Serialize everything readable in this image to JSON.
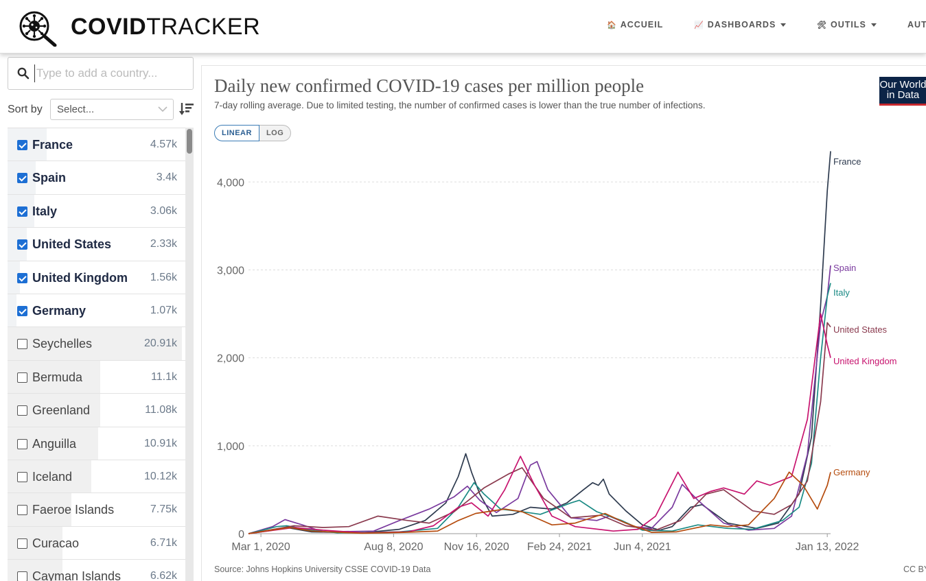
{
  "header": {
    "brand_bold": "COVID",
    "brand_light": "TRACKER",
    "nav": [
      {
        "emoji": "🏠",
        "label": "ACCUEIL",
        "dropdown": false
      },
      {
        "emoji": "📈",
        "label": "DASHBOARDS",
        "dropdown": true
      },
      {
        "emoji": "🛠",
        "label": "OUTILS",
        "dropdown": true
      },
      {
        "emoji": "",
        "label": "AUT",
        "dropdown": false
      }
    ]
  },
  "sidebar": {
    "search_placeholder": "Type to add a country...",
    "sort_label": "Sort by",
    "sort_placeholder": "Select...",
    "countries": [
      {
        "name": "France",
        "value": "4.57k",
        "checked": true,
        "bar": 0.22
      },
      {
        "name": "Spain",
        "value": "3.4k",
        "checked": true,
        "bar": 0.16
      },
      {
        "name": "Italy",
        "value": "3.06k",
        "checked": true,
        "bar": 0.15
      },
      {
        "name": "United States",
        "value": "2.33k",
        "checked": true,
        "bar": 0.11
      },
      {
        "name": "United Kingdom",
        "value": "1.56k",
        "checked": true,
        "bar": 0.07
      },
      {
        "name": "Germany",
        "value": "1.07k",
        "checked": true,
        "bar": 0.05
      },
      {
        "name": "Seychelles",
        "value": "20.91k",
        "checked": false,
        "bar": 0.98
      },
      {
        "name": "Bermuda",
        "value": "11.1k",
        "checked": false,
        "bar": 0.52
      },
      {
        "name": "Greenland",
        "value": "11.08k",
        "checked": false,
        "bar": 0.52
      },
      {
        "name": "Anguilla",
        "value": "10.91k",
        "checked": false,
        "bar": 0.51
      },
      {
        "name": "Iceland",
        "value": "10.12k",
        "checked": false,
        "bar": 0.47
      },
      {
        "name": "Faeroe Islands",
        "value": "7.75k",
        "checked": false,
        "bar": 0.36
      },
      {
        "name": "Curacao",
        "value": "6.71k",
        "checked": false,
        "bar": 0.31
      },
      {
        "name": "Cayman Islands",
        "value": "6.62k",
        "checked": false,
        "bar": 0.31
      }
    ]
  },
  "chart": {
    "title": "Daily new confirmed COVID-19 cases per million people",
    "subtitle": "7-day rolling average. Due to limited testing, the number of confirmed cases is lower than the true number of infections.",
    "logo_line1": "Our World",
    "logo_line2": "in Data",
    "scale_linear": "LINEAR",
    "scale_log": "LOG",
    "source": "Source: Johns Hopkins University CSSE COVID-19 Data",
    "license": "CC BY"
  },
  "chart_data": {
    "type": "line",
    "x_tick_labels": [
      "Mar 1, 2020",
      "Aug 8, 2020",
      "Nov 16, 2020",
      "Feb 24, 2021",
      "Jun 4, 2021",
      "Jan 13, 2022"
    ],
    "x_tick_dates": [
      "2020-03-01",
      "2020-08-08",
      "2020-11-16",
      "2021-02-24",
      "2021-06-04",
      "2022-01-13"
    ],
    "x_range": [
      "2020-02-15",
      "2022-01-17"
    ],
    "y_ticks": [
      0,
      1000,
      2000,
      3000,
      4000
    ],
    "ylim": [
      0,
      4400
    ],
    "grid": "horizontal",
    "series": [
      {
        "name": "France",
        "color": "#2d3a4e",
        "points": [
          [
            "2020-02-15",
            0
          ],
          [
            "2020-03-15",
            40
          ],
          [
            "2020-04-01",
            70
          ],
          [
            "2020-05-01",
            20
          ],
          [
            "2020-07-01",
            10
          ],
          [
            "2020-08-15",
            50
          ],
          [
            "2020-09-15",
            150
          ],
          [
            "2020-10-10",
            350
          ],
          [
            "2020-10-25",
            650
          ],
          [
            "2020-11-03",
            910
          ],
          [
            "2020-11-10",
            700
          ],
          [
            "2020-11-20",
            450
          ],
          [
            "2020-12-05",
            200
          ],
          [
            "2020-12-30",
            220
          ],
          [
            "2021-01-20",
            300
          ],
          [
            "2021-02-15",
            280
          ],
          [
            "2021-03-05",
            350
          ],
          [
            "2021-03-25",
            500
          ],
          [
            "2021-04-05",
            580
          ],
          [
            "2021-04-12",
            550
          ],
          [
            "2021-04-18",
            620
          ],
          [
            "2021-04-25",
            450
          ],
          [
            "2021-05-15",
            260
          ],
          [
            "2021-06-04",
            100
          ],
          [
            "2021-06-25",
            40
          ],
          [
            "2021-07-10",
            80
          ],
          [
            "2021-08-01",
            300
          ],
          [
            "2021-08-15",
            330
          ],
          [
            "2021-09-15",
            120
          ],
          [
            "2021-10-20",
            60
          ],
          [
            "2021-11-15",
            120
          ],
          [
            "2021-12-10",
            450
          ],
          [
            "2021-12-25",
            1100
          ],
          [
            "2022-01-05",
            2600
          ],
          [
            "2022-01-13",
            3900
          ],
          [
            "2022-01-17",
            4350
          ]
        ]
      },
      {
        "name": "Spain",
        "color": "#7a3a9e",
        "points": [
          [
            "2020-02-15",
            0
          ],
          [
            "2020-03-15",
            80
          ],
          [
            "2020-03-30",
            160
          ],
          [
            "2020-04-20",
            100
          ],
          [
            "2020-05-15",
            20
          ],
          [
            "2020-07-15",
            30
          ],
          [
            "2020-08-15",
            150
          ],
          [
            "2020-09-20",
            280
          ],
          [
            "2020-10-20",
            420
          ],
          [
            "2020-11-05",
            540
          ],
          [
            "2020-11-20",
            380
          ],
          [
            "2020-12-10",
            240
          ],
          [
            "2021-01-05",
            400
          ],
          [
            "2021-01-20",
            780
          ],
          [
            "2021-01-28",
            820
          ],
          [
            "2021-02-10",
            500
          ],
          [
            "2021-03-10",
            180
          ],
          [
            "2021-04-10",
            150
          ],
          [
            "2021-04-25",
            200
          ],
          [
            "2021-05-25",
            80
          ],
          [
            "2021-06-15",
            60
          ],
          [
            "2021-07-10",
            300
          ],
          [
            "2021-07-22",
            560
          ],
          [
            "2021-08-10",
            380
          ],
          [
            "2021-09-10",
            120
          ],
          [
            "2021-10-10",
            40
          ],
          [
            "2021-11-10",
            60
          ],
          [
            "2021-12-01",
            200
          ],
          [
            "2021-12-20",
            900
          ],
          [
            "2022-01-05",
            2400
          ],
          [
            "2022-01-13",
            2700
          ],
          [
            "2022-01-17",
            3050
          ]
        ]
      },
      {
        "name": "Italy",
        "color": "#1a8a84",
        "points": [
          [
            "2020-02-15",
            0
          ],
          [
            "2020-03-20",
            80
          ],
          [
            "2020-04-01",
            90
          ],
          [
            "2020-04-30",
            40
          ],
          [
            "2020-06-01",
            10
          ],
          [
            "2020-08-15",
            20
          ],
          [
            "2020-09-30",
            60
          ],
          [
            "2020-10-25",
            300
          ],
          [
            "2020-11-13",
            580
          ],
          [
            "2020-11-25",
            450
          ],
          [
            "2020-12-15",
            280
          ],
          [
            "2021-01-10",
            250
          ],
          [
            "2021-02-01",
            220
          ],
          [
            "2021-03-10",
            350
          ],
          [
            "2021-03-20",
            380
          ],
          [
            "2021-04-10",
            250
          ],
          [
            "2021-05-10",
            150
          ],
          [
            "2021-06-04",
            40
          ],
          [
            "2021-07-10",
            30
          ],
          [
            "2021-08-10",
            100
          ],
          [
            "2021-09-15",
            60
          ],
          [
            "2021-10-15",
            50
          ],
          [
            "2021-11-20",
            150
          ],
          [
            "2021-12-10",
            300
          ],
          [
            "2021-12-25",
            800
          ],
          [
            "2022-01-05",
            2000
          ],
          [
            "2022-01-13",
            2700
          ],
          [
            "2022-01-17",
            2850
          ]
        ]
      },
      {
        "name": "United States",
        "color": "#8a3a4e",
        "points": [
          [
            "2020-02-15",
            0
          ],
          [
            "2020-04-10",
            90
          ],
          [
            "2020-05-15",
            70
          ],
          [
            "2020-06-15",
            80
          ],
          [
            "2020-07-20",
            200
          ],
          [
            "2020-08-25",
            150
          ],
          [
            "2020-09-20",
            120
          ],
          [
            "2020-10-20",
            250
          ],
          [
            "2020-11-25",
            520
          ],
          [
            "2020-12-25",
            680
          ],
          [
            "2021-01-10",
            750
          ],
          [
            "2021-02-05",
            400
          ],
          [
            "2021-03-10",
            180
          ],
          [
            "2021-04-15",
            210
          ],
          [
            "2021-05-15",
            90
          ],
          [
            "2021-06-20",
            40
          ],
          [
            "2021-07-20",
            150
          ],
          [
            "2021-08-20",
            450
          ],
          [
            "2021-09-10",
            500
          ],
          [
            "2021-10-15",
            260
          ],
          [
            "2021-11-10",
            220
          ],
          [
            "2021-12-01",
            330
          ],
          [
            "2021-12-20",
            600
          ],
          [
            "2022-01-05",
            1500
          ],
          [
            "2022-01-13",
            2400
          ],
          [
            "2022-01-17",
            2350
          ]
        ]
      },
      {
        "name": "United Kingdom",
        "color": "#c7136e",
        "points": [
          [
            "2020-02-15",
            0
          ],
          [
            "2020-04-10",
            70
          ],
          [
            "2020-05-15",
            40
          ],
          [
            "2020-07-01",
            10
          ],
          [
            "2020-08-25",
            20
          ],
          [
            "2020-09-25",
            90
          ],
          [
            "2020-10-25",
            300
          ],
          [
            "2020-11-10",
            350
          ],
          [
            "2020-11-30",
            200
          ],
          [
            "2020-12-20",
            500
          ],
          [
            "2021-01-08",
            880
          ],
          [
            "2021-01-25",
            550
          ],
          [
            "2021-02-15",
            200
          ],
          [
            "2021-03-15",
            80
          ],
          [
            "2021-04-30",
            30
          ],
          [
            "2021-05-30",
            50
          ],
          [
            "2021-06-20",
            200
          ],
          [
            "2021-07-17",
            700
          ],
          [
            "2021-08-05",
            400
          ],
          [
            "2021-08-25",
            480
          ],
          [
            "2021-09-10",
            520
          ],
          [
            "2021-10-05",
            450
          ],
          [
            "2021-10-20",
            600
          ],
          [
            "2021-11-05",
            550
          ],
          [
            "2021-12-01",
            650
          ],
          [
            "2021-12-20",
            1300
          ],
          [
            "2022-01-05",
            2500
          ],
          [
            "2022-01-13",
            2150
          ],
          [
            "2022-01-17",
            2000
          ]
        ]
      },
      {
        "name": "Germany",
        "color": "#b54c0e",
        "points": [
          [
            "2020-02-15",
            0
          ],
          [
            "2020-03-20",
            50
          ],
          [
            "2020-04-05",
            70
          ],
          [
            "2020-05-01",
            30
          ],
          [
            "2020-07-01",
            5
          ],
          [
            "2020-08-20",
            15
          ],
          [
            "2020-09-30",
            30
          ],
          [
            "2020-10-25",
            150
          ],
          [
            "2020-11-15",
            230
          ],
          [
            "2020-12-20",
            280
          ],
          [
            "2021-01-10",
            250
          ],
          [
            "2021-02-15",
            100
          ],
          [
            "2021-03-15",
            120
          ],
          [
            "2021-04-20",
            230
          ],
          [
            "2021-05-15",
            120
          ],
          [
            "2021-06-15",
            15
          ],
          [
            "2021-07-15",
            20
          ],
          [
            "2021-08-25",
            100
          ],
          [
            "2021-09-15",
            80
          ],
          [
            "2021-10-10",
            100
          ],
          [
            "2021-11-10",
            400
          ],
          [
            "2021-11-28",
            700
          ],
          [
            "2021-12-15",
            550
          ],
          [
            "2022-01-01",
            280
          ],
          [
            "2022-01-13",
            550
          ],
          [
            "2022-01-17",
            700
          ]
        ]
      }
    ]
  }
}
